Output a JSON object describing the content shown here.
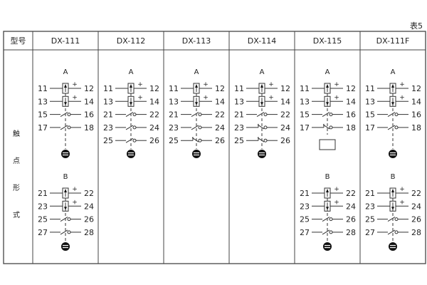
{
  "caption": "表5",
  "header": {
    "model_label": "型号"
  },
  "row_label": [
    "触",
    "点",
    "形",
    "式"
  ],
  "models": [
    {
      "name": "DX-111",
      "groups": [
        {
          "label": "A",
          "contacts": [
            [
              "11",
              "12",
              "coil-up"
            ],
            [
              "13",
              "14",
              "coil-down"
            ],
            [
              "15",
              "16",
              "no"
            ],
            [
              "17",
              "18",
              "no"
            ]
          ],
          "end": "ground"
        },
        {
          "label": "B",
          "contacts": [
            [
              "21",
              "22",
              "coil-up"
            ],
            [
              "23",
              "24",
              "coil-down"
            ],
            [
              "25",
              "26",
              "no"
            ],
            [
              "27",
              "28",
              "no"
            ]
          ],
          "end": "ground"
        }
      ]
    },
    {
      "name": "DX-112",
      "groups": [
        {
          "label": "A",
          "contacts": [
            [
              "11",
              "12",
              "coil-up"
            ],
            [
              "13",
              "14",
              "coil-down"
            ],
            [
              "21",
              "22",
              "no"
            ],
            [
              "23",
              "24",
              "no"
            ],
            [
              "25",
              "26",
              "no"
            ]
          ],
          "end": "ground"
        }
      ]
    },
    {
      "name": "DX-113",
      "groups": [
        {
          "label": "A",
          "contacts": [
            [
              "11",
              "12",
              "coil-up"
            ],
            [
              "13",
              "14",
              "coil-down"
            ],
            [
              "21",
              "22",
              "no"
            ],
            [
              "23",
              "24",
              "no"
            ],
            [
              "25",
              "26",
              "nc"
            ]
          ],
          "end": "ground"
        }
      ]
    },
    {
      "name": "DX-114",
      "groups": [
        {
          "label": "A",
          "contacts": [
            [
              "11",
              "12",
              "coil-up"
            ],
            [
              "13",
              "14",
              "coil-down"
            ],
            [
              "21",
              "22",
              "no"
            ],
            [
              "23",
              "24",
              "nc"
            ],
            [
              "25",
              "26",
              "nc"
            ]
          ],
          "end": "ground"
        }
      ]
    },
    {
      "name": "DX-115",
      "groups": [
        {
          "label": "A",
          "contacts": [
            [
              "11",
              "12",
              "coil-up"
            ],
            [
              "13",
              "14",
              "coil-down"
            ],
            [
              "15",
              "16",
              "no"
            ],
            [
              "17",
              "18",
              "nc"
            ]
          ],
          "end": "box"
        },
        {
          "label": "B",
          "contacts": [
            [
              "21",
              "22",
              "coil-up"
            ],
            [
              "23",
              "24",
              "coil-down"
            ],
            [
              "25",
              "26",
              "no"
            ],
            [
              "27",
              "28",
              "no"
            ]
          ],
          "end": "ground"
        }
      ]
    },
    {
      "name": "DX-111F",
      "groups": [
        {
          "label": "A",
          "contacts": [
            [
              "11",
              "12",
              "coil-up"
            ],
            [
              "13",
              "14",
              "coil-down"
            ],
            [
              "15",
              "16",
              "no"
            ],
            [
              "17",
              "18",
              "no"
            ]
          ],
          "end": "ground"
        },
        {
          "label": "B",
          "contacts": [
            [
              "21",
              "22",
              "coil-up"
            ],
            [
              "23",
              "24",
              "coil-down"
            ],
            [
              "25",
              "26",
              "no"
            ],
            [
              "27",
              "28",
              "no"
            ]
          ],
          "end": "ground"
        }
      ]
    }
  ],
  "plus_sign": "+"
}
